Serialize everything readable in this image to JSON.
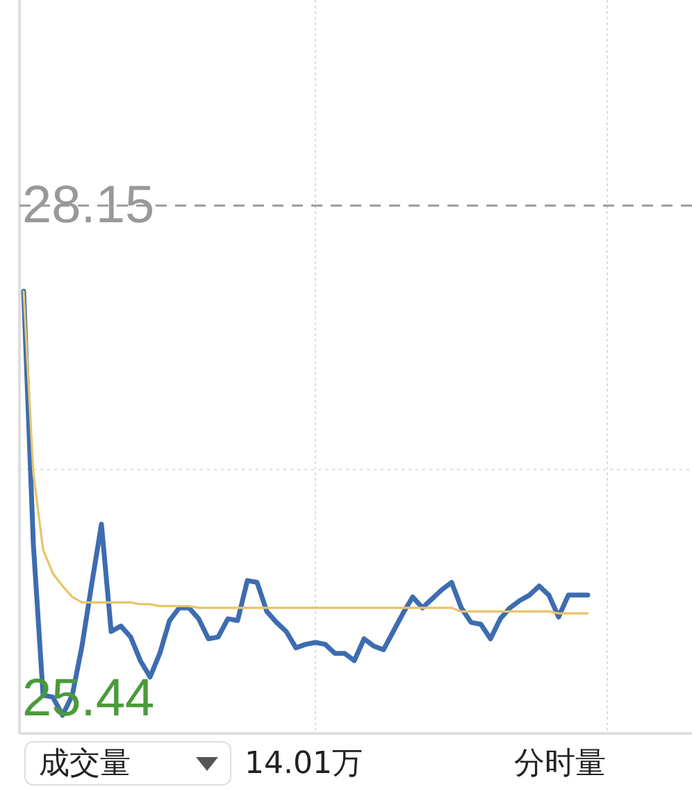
{
  "chart_data": {
    "type": "line",
    "categories": [
      null,
      null,
      null,
      null,
      null,
      null,
      null,
      null,
      null,
      null,
      null,
      null,
      null,
      null,
      null,
      null,
      null,
      null,
      null,
      null,
      null,
      null,
      null,
      null,
      null,
      null,
      null,
      null,
      null,
      null,
      null,
      null,
      null,
      null,
      null,
      null,
      null,
      null,
      null,
      null,
      null,
      null,
      null,
      null,
      null,
      null,
      null,
      null,
      null,
      null,
      null,
      null,
      null,
      null,
      null,
      null,
      null,
      null,
      null,
      null,
      null,
      null,
      null,
      null,
      null,
      null,
      null,
      null,
      null
    ],
    "ylim": [
      25.25,
      29.28
    ],
    "yticks": [
      25.44,
      28.15
    ],
    "marker": "none",
    "ref_lines": [
      {
        "axis": "y",
        "value": 28.15,
        "color": "#999999",
        "line_style": "dashed"
      },
      {
        "axis": "y",
        "value": 26.7,
        "color": "#dddddd",
        "line_style": "dotted"
      }
    ],
    "annotations": [
      "成交量",
      "14.01万",
      "分时量"
    ],
    "series": [
      {
        "color": "#3d6cb0",
        "values": [
          27.68,
          26.29,
          25.46,
          25.45,
          25.35,
          25.46,
          25.73,
          26.07,
          26.4,
          25.81,
          25.84,
          25.78,
          25.65,
          25.56,
          25.69,
          25.87,
          25.94,
          25.94,
          25.88,
          25.77,
          25.78,
          25.88,
          25.87,
          26.09,
          26.08,
          25.92,
          25.86,
          25.81,
          25.72,
          25.74,
          25.75,
          25.74,
          25.69,
          25.69,
          25.65,
          25.77,
          25.73,
          25.71,
          25.81,
          25.91,
          26.0,
          25.94,
          25.99,
          26.04,
          26.08,
          25.94,
          25.86,
          25.85,
          25.77,
          25.88,
          25.94,
          25.98,
          26.01,
          26.06,
          26.01,
          25.89,
          26.01,
          26.01,
          26.01,
          null,
          null,
          null,
          null,
          null,
          null,
          null,
          null,
          null,
          null
        ]
      },
      {
        "color": "#e8c468",
        "values": [
          27.68,
          26.68,
          26.26,
          26.13,
          26.06,
          26.0,
          25.97,
          25.97,
          25.97,
          25.97,
          25.97,
          25.97,
          25.96,
          25.96,
          25.95,
          25.95,
          25.95,
          25.95,
          25.94,
          25.94,
          25.94,
          25.94,
          25.94,
          25.94,
          25.94,
          25.94,
          25.94,
          25.94,
          25.94,
          25.94,
          25.94,
          25.94,
          25.94,
          25.94,
          25.94,
          25.94,
          25.94,
          25.94,
          25.94,
          25.94,
          25.94,
          25.94,
          25.94,
          25.94,
          25.94,
          25.92,
          25.92,
          25.92,
          25.92,
          25.92,
          25.92,
          25.92,
          25.92,
          25.92,
          25.92,
          25.91,
          25.91,
          25.91,
          25.91,
          null,
          null,
          null,
          null,
          null,
          null,
          null,
          null,
          null,
          null
        ]
      }
    ]
  }
}
